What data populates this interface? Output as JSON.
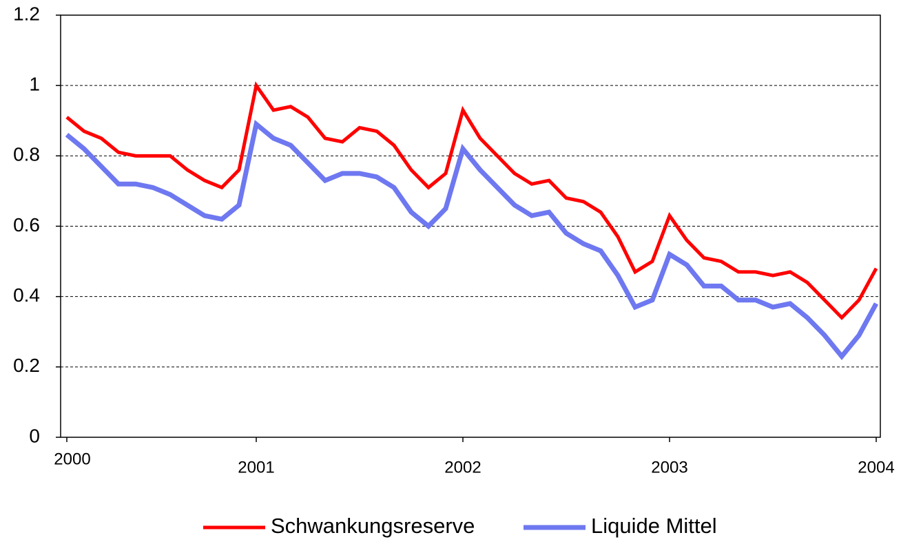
{
  "chart_data": {
    "type": "line",
    "categories": [
      "2000",
      null,
      null,
      null,
      null,
      null,
      null,
      null,
      null,
      null,
      null,
      "2001",
      null,
      null,
      null,
      null,
      null,
      null,
      null,
      null,
      null,
      null,
      null,
      "2002",
      null,
      null,
      null,
      null,
      null,
      null,
      null,
      null,
      null,
      null,
      null,
      "2003",
      null,
      null,
      null,
      null,
      null,
      null,
      null,
      null,
      null,
      null,
      null,
      "2004"
    ],
    "series": [
      {
        "name": "Schwankungsreserve",
        "color": "#ff0000",
        "values": [
          0.91,
          0.87,
          0.85,
          0.81,
          0.8,
          0.8,
          0.8,
          0.76,
          0.73,
          0.71,
          0.76,
          1.0,
          0.93,
          0.94,
          0.91,
          0.85,
          0.84,
          0.88,
          0.87,
          0.83,
          0.76,
          0.71,
          0.75,
          0.93,
          0.85,
          0.8,
          0.75,
          0.72,
          0.73,
          0.68,
          0.67,
          0.64,
          0.57,
          0.47,
          0.5,
          0.63,
          0.56,
          0.51,
          0.5,
          0.47,
          0.47,
          0.46,
          0.47,
          0.44,
          0.39,
          0.34,
          0.39,
          0.48
        ]
      },
      {
        "name": "Liquide Mittel",
        "color": "#6e78f0",
        "values": [
          0.86,
          0.82,
          0.77,
          0.72,
          0.72,
          0.71,
          0.69,
          0.66,
          0.63,
          0.62,
          0.66,
          0.89,
          0.85,
          0.83,
          0.78,
          0.73,
          0.75,
          0.75,
          0.74,
          0.71,
          0.64,
          0.6,
          0.65,
          0.82,
          0.76,
          0.71,
          0.66,
          0.63,
          0.64,
          0.58,
          0.55,
          0.53,
          0.46,
          0.37,
          0.39,
          0.52,
          0.49,
          0.43,
          0.43,
          0.39,
          0.39,
          0.37,
          0.38,
          0.34,
          0.29,
          0.23,
          0.29,
          0.38
        ]
      }
    ],
    "ylim": [
      0,
      1.2
    ],
    "yticks": [
      0,
      0.2,
      0.4,
      0.6,
      0.8,
      1,
      1.2
    ],
    "grid": true,
    "legend": "bottom"
  }
}
